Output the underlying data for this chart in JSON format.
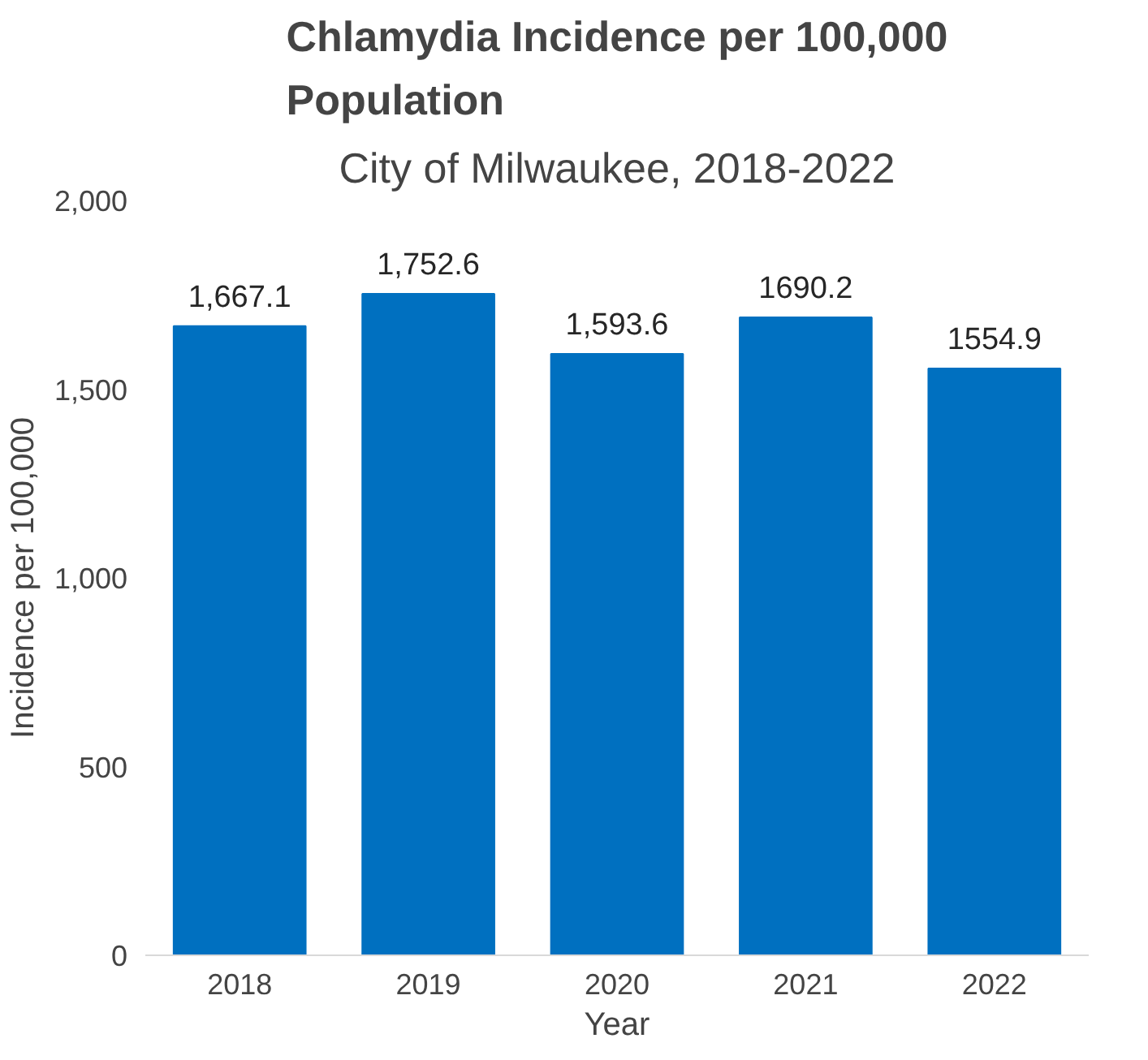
{
  "chart_data": {
    "type": "bar",
    "title": "Chlamydia Incidence per 100,000 Population",
    "subtitle": "City of Milwaukee, 2018-2022",
    "xlabel": "Year",
    "ylabel": "Incidence per 100,000",
    "categories": [
      "2018",
      "2019",
      "2020",
      "2021",
      "2022"
    ],
    "values": [
      1667.1,
      1752.6,
      1593.6,
      1690.2,
      1554.9
    ],
    "value_labels": [
      "1,667.1",
      "1,752.6",
      "1,593.6",
      "1690.2",
      "1554.9"
    ],
    "color": "#0070c0",
    "ylim": [
      0,
      2000
    ],
    "yticks": [
      0,
      500,
      {
        "value": 1000,
        "label": "1,000"
      },
      {
        "value": 1500,
        "label": "1,500"
      },
      {
        "value": 2000,
        "label": "2,000"
      }
    ],
    "grid": false
  }
}
